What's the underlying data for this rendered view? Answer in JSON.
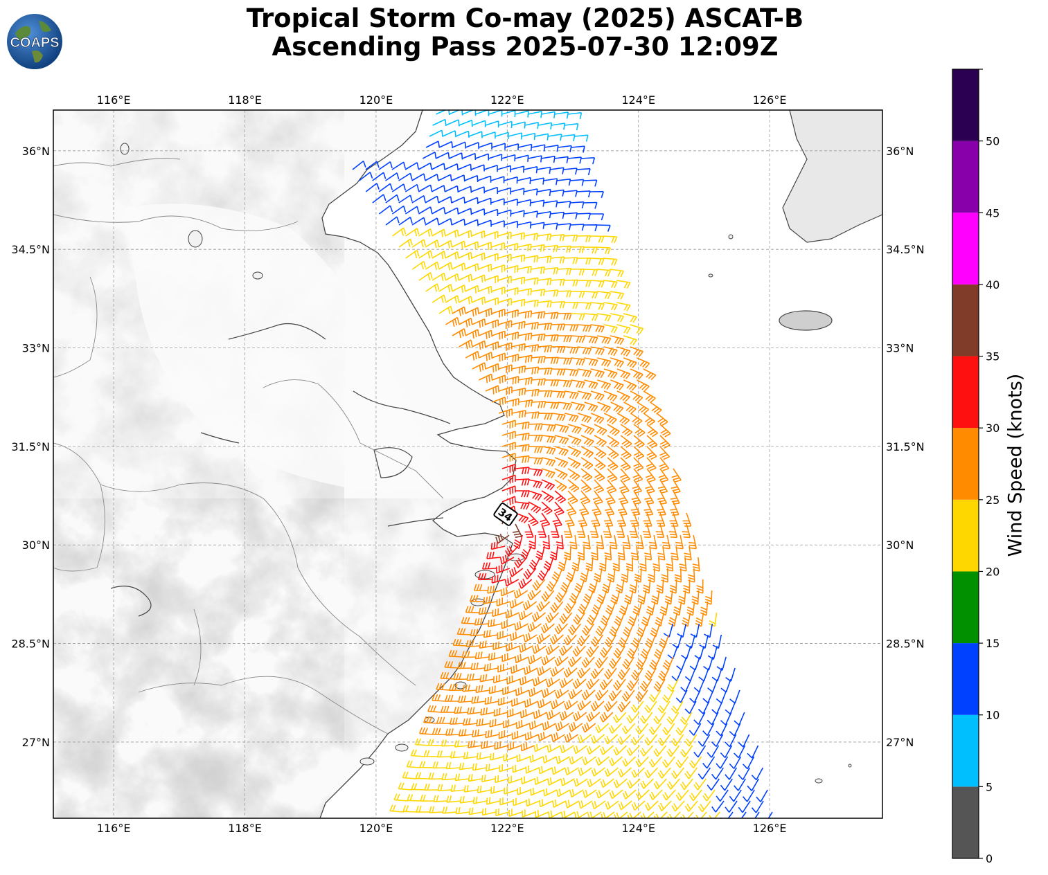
{
  "header": {
    "title_line1": "Tropical Storm Co-may (2025) ASCAT-B",
    "title_line2": "Ascending Pass 2025-07-30 12:09Z",
    "logo_text": "COAPS"
  },
  "map": {
    "lon_ticks": [
      "116°E",
      "118°E",
      "120°E",
      "122°E",
      "124°E",
      "126°E"
    ],
    "lat_ticks": [
      "36°N",
      "34.5°N",
      "33°N",
      "31.5°N",
      "30°N",
      "28.5°N",
      "27°N"
    ],
    "center_label": "34",
    "lon_range": [
      115.08,
      127.72
    ],
    "lat_range": [
      25.84,
      36.62
    ]
  },
  "colorbar": {
    "label": "Wind Speed (knots)",
    "ticks": [
      "0",
      "5",
      "10",
      "15",
      "20",
      "25",
      "30",
      "35",
      "40",
      "45",
      "50"
    ],
    "colors": [
      "#555555",
      "#00bfff",
      "#0040ff",
      "#009000",
      "#ffd700",
      "#ff8c00",
      "#ff1010",
      "#803c28",
      "#ff00ff",
      "#8800aa",
      "#2b0052"
    ]
  }
}
